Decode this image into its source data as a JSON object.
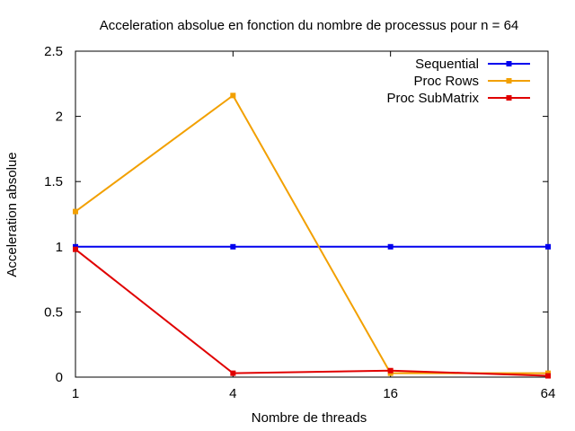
{
  "chart_data": {
    "type": "line",
    "title": "Acceleration absolue en fonction du nombre de processus pour n = 64",
    "xlabel": "Nombre de threads",
    "ylabel": "Acceleration absolue",
    "x_scale": "log2",
    "x": [
      1,
      4,
      16,
      64
    ],
    "x_tick_labels": [
      "1",
      "4",
      "16",
      "64"
    ],
    "ylim": [
      0,
      2.5
    ],
    "y_ticks": [
      0,
      0.5,
      1,
      1.5,
      2,
      2.5
    ],
    "y_tick_labels": [
      "0",
      "0.5",
      "1",
      "1.5",
      "2",
      "2.5"
    ],
    "grid": false,
    "legend_position": "top-right",
    "series": [
      {
        "name": "Sequential",
        "color": "#0000ee",
        "values": [
          1,
          1,
          1,
          1
        ]
      },
      {
        "name": "Proc Rows",
        "color": "#f2a000",
        "values": [
          1.27,
          2.16,
          0.03,
          0.03
        ]
      },
      {
        "name": "Proc SubMatrix",
        "color": "#e00000",
        "values": [
          0.98,
          0.03,
          0.05,
          0.01
        ]
      }
    ]
  }
}
